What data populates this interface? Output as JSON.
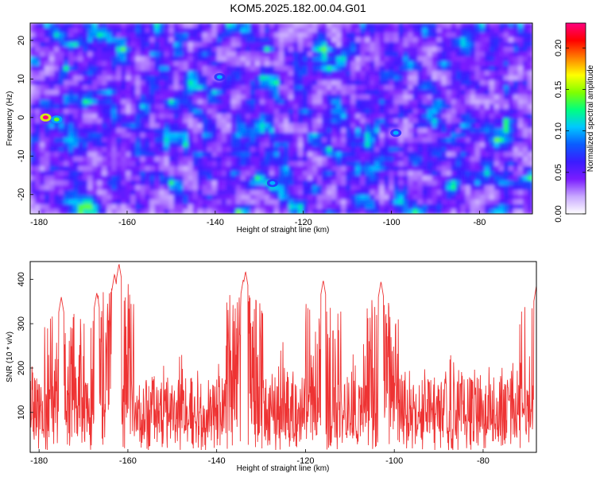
{
  "title": "KOM5.2025.182.00.04.G01",
  "chart_data": [
    {
      "type": "heatmap",
      "xlabel": "Height of straight line (km)",
      "ylabel": "Frequency (Hz)",
      "xlim": [
        -182,
        -68
      ],
      "ylim": [
        -25,
        24.5
      ],
      "x_ticks": [
        -180,
        -160,
        -140,
        -120,
        -100,
        -80
      ],
      "y_ticks": [
        -20,
        -10,
        0,
        10,
        20
      ],
      "colorbar": {
        "label": "Normalized spectral amplitude",
        "range": [
          0,
          0.23
        ],
        "ticks": [
          0.0,
          0.05,
          0.1,
          0.15,
          0.2
        ],
        "tick_labels": [
          "0.00",
          "0.05",
          "0.10",
          "0.15",
          "0.20"
        ],
        "colormap": [
          "#ffffff",
          "#c8a8ff",
          "#7a1cff",
          "#3a1cff",
          "#0a5cff",
          "#00c8ff",
          "#00ff80",
          "#80ff00",
          "#ffff00",
          "#ff8000",
          "#ff0000",
          "#ff0080"
        ]
      },
      "hotspots": [
        {
          "x": -178.5,
          "y": 0,
          "value": 0.23
        },
        {
          "x": -176,
          "y": -0.5,
          "value": 0.14
        },
        {
          "x": -139,
          "y": 10.5,
          "value": 0.1
        },
        {
          "x": -127,
          "y": -17,
          "value": 0.1
        },
        {
          "x": -99,
          "y": -4,
          "value": 0.1
        }
      ],
      "grid": false
    },
    {
      "type": "line",
      "xlabel": "Height of straight line (km)",
      "ylabel": "SNR (10 * v/v)",
      "xlim": [
        -182,
        -68
      ],
      "ylim": [
        10,
        440
      ],
      "x_ticks": [
        -180,
        -160,
        -140,
        -120,
        -100,
        -80
      ],
      "y_ticks": [
        100,
        200,
        300,
        400
      ],
      "series": [
        {
          "color": "#ee3333",
          "baseline": 110,
          "noise_range": [
            15,
            260
          ],
          "peaks": [
            {
              "x": -163,
              "y": 412
            },
            {
              "x": -162,
              "y": 435
            },
            {
              "x": -133.5,
              "y": 418
            },
            {
              "x": -134,
              "y": 400
            },
            {
              "x": -116,
              "y": 398
            },
            {
              "x": -103,
              "y": 395
            },
            {
              "x": -167,
              "y": 370
            },
            {
              "x": -175,
              "y": 360
            },
            {
              "x": -68,
              "y": 385
            }
          ]
        }
      ],
      "grid": false
    }
  ]
}
